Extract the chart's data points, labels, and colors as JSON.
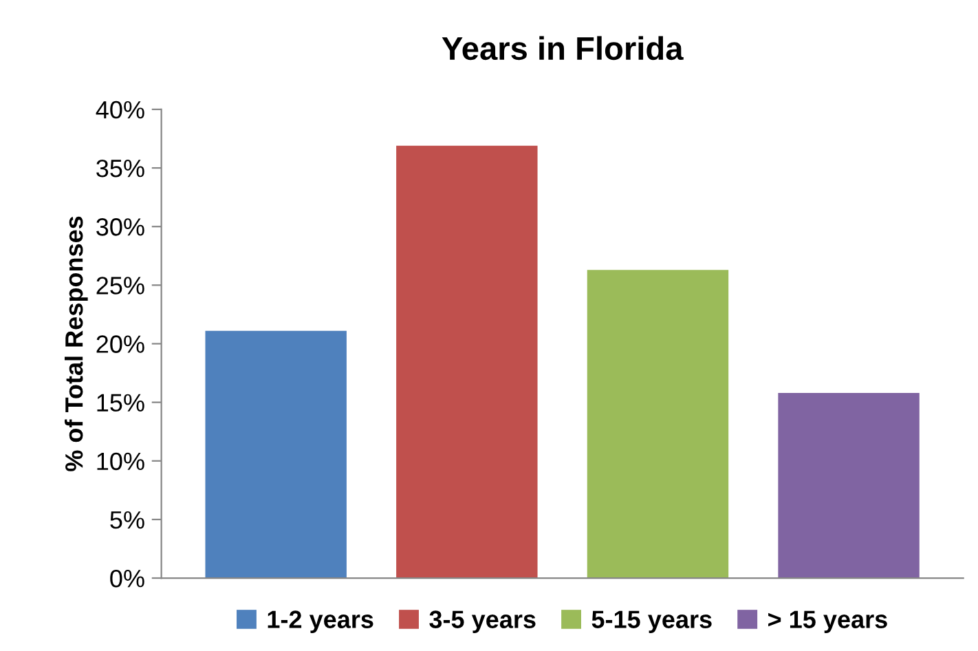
{
  "chart_data": {
    "type": "bar",
    "title": "Years in Florida",
    "ylabel": "% of Total Responses",
    "categories": [
      null,
      null,
      null,
      null
    ],
    "series": [
      {
        "name": "1-2 years",
        "color": "#4f81bd",
        "values": [
          21.1,
          null,
          null,
          null
        ]
      },
      {
        "name": "3-5 years",
        "color": "#c0504d",
        "values": [
          null,
          36.9,
          null,
          null
        ]
      },
      {
        "name": "5-15 years",
        "color": "#9bbb59",
        "values": [
          null,
          null,
          26.3,
          null
        ]
      },
      {
        "name": "> 15 years",
        "color": "#8064a2",
        "values": [
          null,
          null,
          null,
          15.8
        ]
      }
    ],
    "ylim": [
      0,
      40
    ],
    "yticks": [
      {
        "value": 0,
        "label": "0%"
      },
      {
        "value": 5,
        "label": "5%"
      },
      {
        "value": 10,
        "label": "10%"
      },
      {
        "value": 15,
        "label": "15%"
      },
      {
        "value": 20,
        "label": "20%"
      },
      {
        "value": 25,
        "label": "25%"
      },
      {
        "value": 30,
        "label": "30%"
      },
      {
        "value": 35,
        "label": "35%"
      },
      {
        "value": 40,
        "label": "40%"
      }
    ],
    "grid": false,
    "legend": "bottom",
    "tick_labels": "y"
  }
}
